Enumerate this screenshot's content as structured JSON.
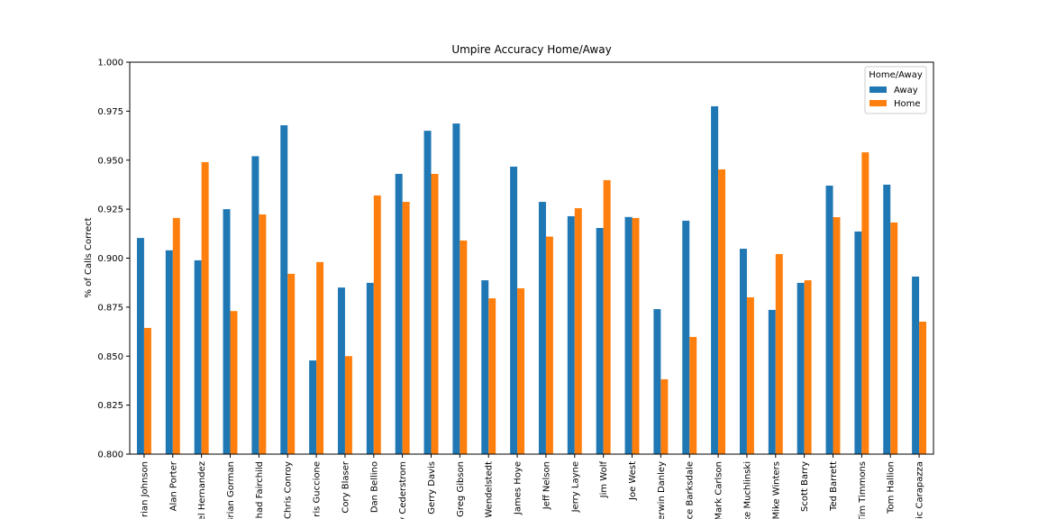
{
  "chart_data": {
    "type": "bar",
    "title": "Umpire Accuracy Home/Away",
    "ylabel": "% of Calls Correct",
    "legend_title": "Home/Away",
    "legend_loc": "upper right",
    "categories": [
      "rian Johnson",
      "Alan Porter",
      "el Hernandez",
      "Brian Gorman",
      "had Fairchild",
      "Chris Conroy",
      "ris Guccione",
      "Cory Blaser",
      "Dan Bellino",
      "y Cederstrom",
      "Gerry Davis",
      "Greg Gibson",
      "Wendelstedt",
      "James Hoye",
      "Jeff Nelson",
      "Jerry Layne",
      "Jim Wolf",
      "Joe West",
      "erwin Danley",
      "ce Barksdale",
      "Mark Carlson",
      "ke Muchlinski",
      "Mike Winters",
      "Scott Barry",
      "Ted Barrett",
      "Tim Timmons",
      "Tom Hallion",
      "ic Carapazza"
    ],
    "series": [
      {
        "name": "Away",
        "color": "#1f77b4",
        "values": [
          0.9103,
          0.904,
          0.8989,
          0.925,
          0.952,
          0.9678,
          0.8478,
          0.885,
          0.8874,
          0.943,
          0.965,
          0.9687,
          0.8887,
          0.9467,
          0.9287,
          0.9214,
          0.9154,
          0.921,
          0.874,
          0.9191,
          0.9775,
          0.9048,
          0.8736,
          0.8874,
          0.937,
          0.9136,
          0.9375,
          0.8906
        ]
      },
      {
        "name": "Home",
        "color": "#ff7f0e",
        "values": [
          0.8644,
          0.9205,
          0.949,
          0.873,
          0.9223,
          0.892,
          0.898,
          0.85,
          0.932,
          0.9287,
          0.943,
          0.909,
          0.8795,
          0.8846,
          0.911,
          0.9255,
          0.9398,
          0.9205,
          0.8382,
          0.8598,
          0.9453,
          0.88,
          0.9021,
          0.8887,
          0.9209,
          0.954,
          0.9182,
          0.8676
        ]
      }
    ],
    "ylim": [
      0.8,
      1.0
    ],
    "yticks": [
      {
        "value": 0.8,
        "label": "0.800"
      },
      {
        "value": 0.825,
        "label": "0.825"
      },
      {
        "value": 0.85,
        "label": "0.850"
      },
      {
        "value": 0.875,
        "label": "0.875"
      },
      {
        "value": 0.9,
        "label": "0.900"
      },
      {
        "value": 0.925,
        "label": "0.925"
      },
      {
        "value": 0.95,
        "label": "0.950"
      },
      {
        "value": 0.975,
        "label": "0.975"
      },
      {
        "value": 1.0,
        "label": "1.000"
      }
    ],
    "grid": false
  }
}
